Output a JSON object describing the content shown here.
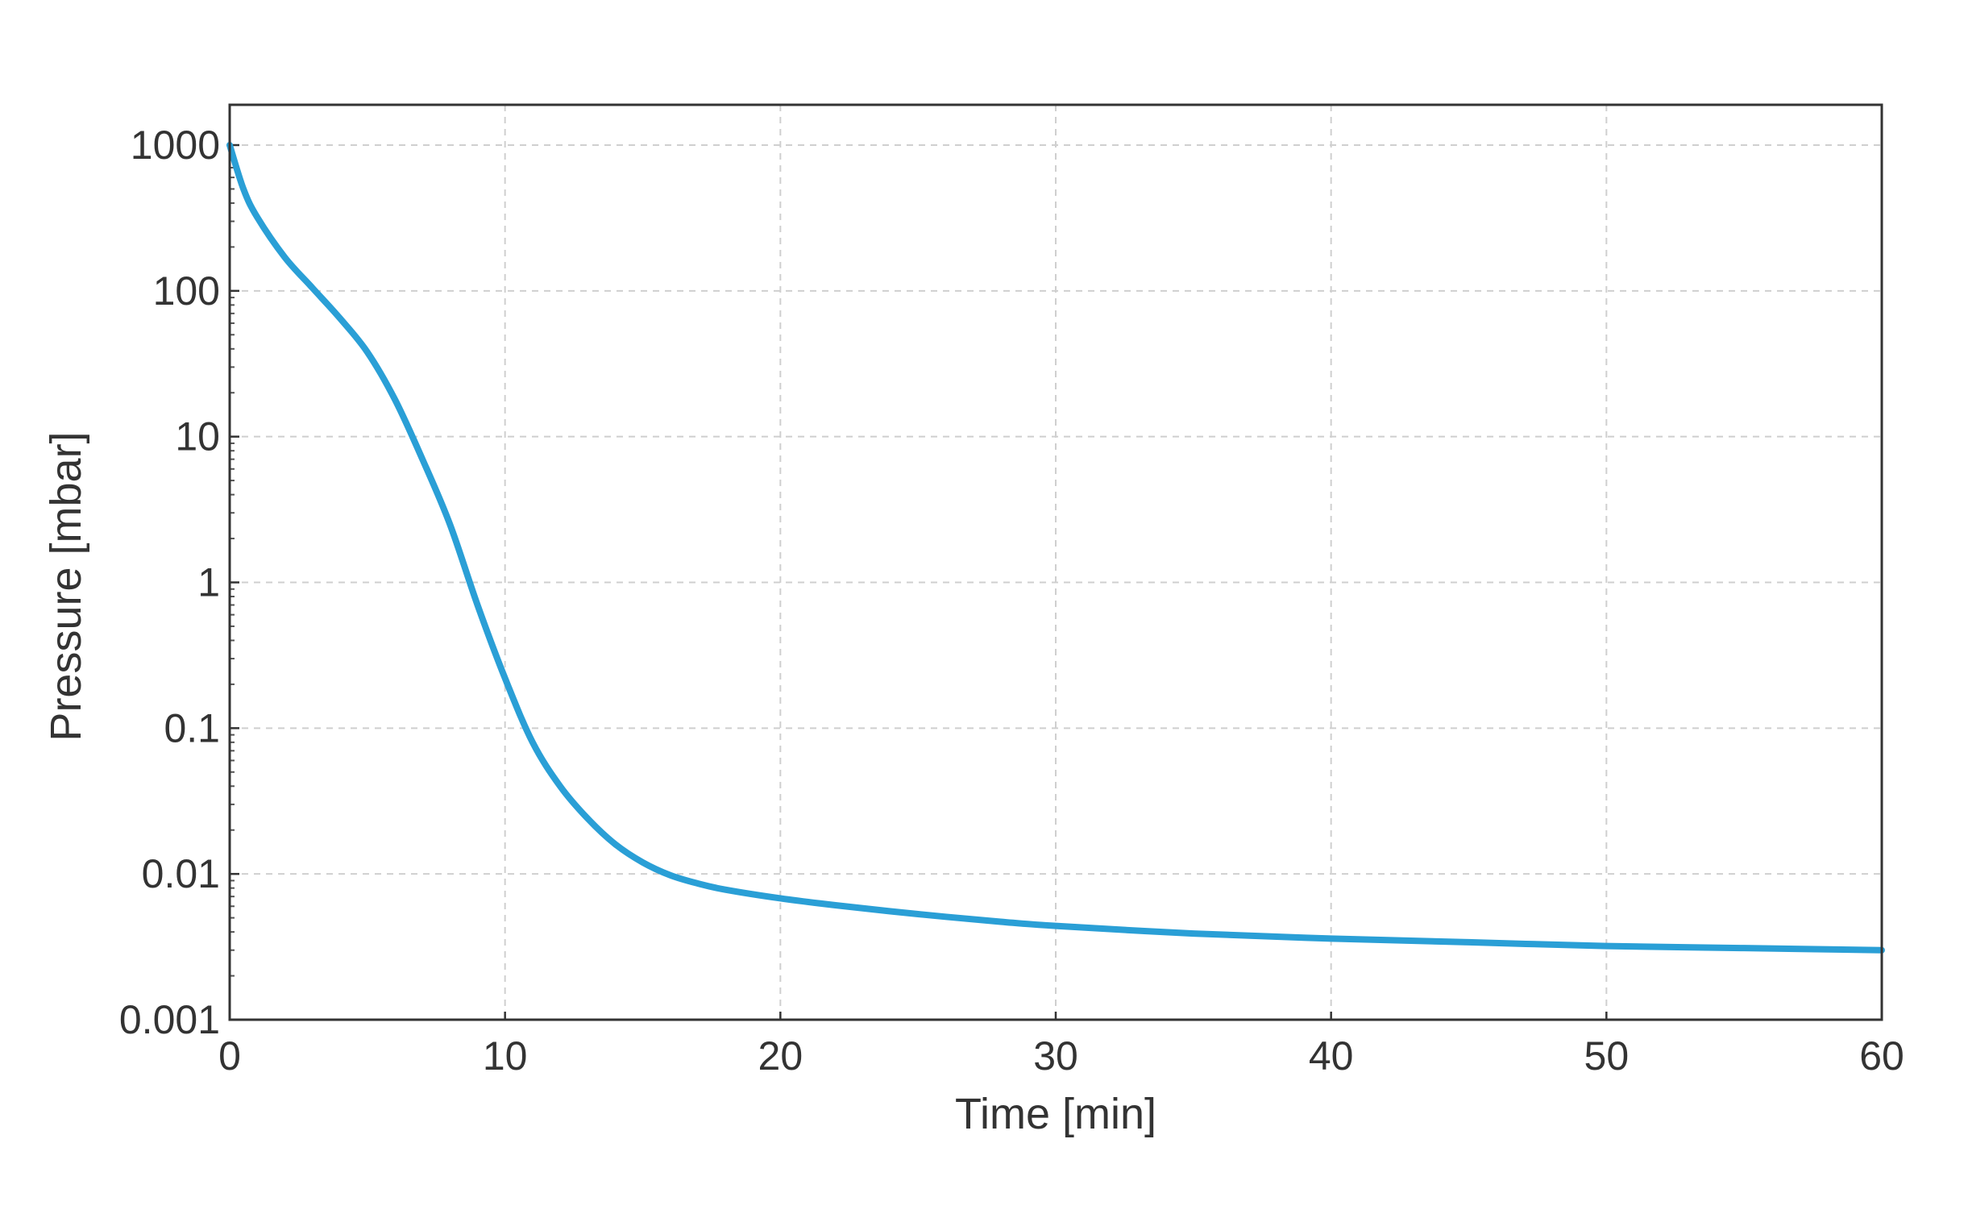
{
  "chart_data": {
    "type": "line",
    "title": "",
    "xlabel": "Time [min]",
    "ylabel": "Pressure [mbar]",
    "xlim": [
      0,
      60
    ],
    "ylim": [
      0.001,
      1000
    ],
    "yscale": "log",
    "grid": true,
    "x_ticks": [
      0,
      10,
      20,
      30,
      40,
      50,
      60
    ],
    "x_tick_labels": [
      "0",
      "10",
      "20",
      "30",
      "40",
      "50",
      "60"
    ],
    "y_ticks": [
      0.001,
      0.01,
      0.1,
      1,
      10,
      100,
      1000
    ],
    "y_tick_labels": [
      "0.001",
      "0.01",
      "0.1",
      "1",
      "10",
      "100",
      "1000"
    ],
    "line_color": "#2a9fd6",
    "series": [
      {
        "x": [
          0,
          0.5,
          1,
          2,
          3,
          4,
          5,
          6,
          7,
          8,
          9,
          10,
          11,
          12,
          13,
          14,
          15,
          16,
          17,
          18,
          20,
          22,
          25,
          28,
          30,
          35,
          40,
          45,
          50,
          55,
          60
        ],
        "y": [
          1000,
          500,
          320,
          170,
          105,
          65,
          38,
          18,
          7,
          2.5,
          0.7,
          0.22,
          0.08,
          0.04,
          0.024,
          0.016,
          0.012,
          0.0098,
          0.0086,
          0.0078,
          0.0068,
          0.0061,
          0.0053,
          0.0047,
          0.0044,
          0.0039,
          0.0036,
          0.0034,
          0.0032,
          0.0031,
          0.003
        ]
      }
    ]
  }
}
